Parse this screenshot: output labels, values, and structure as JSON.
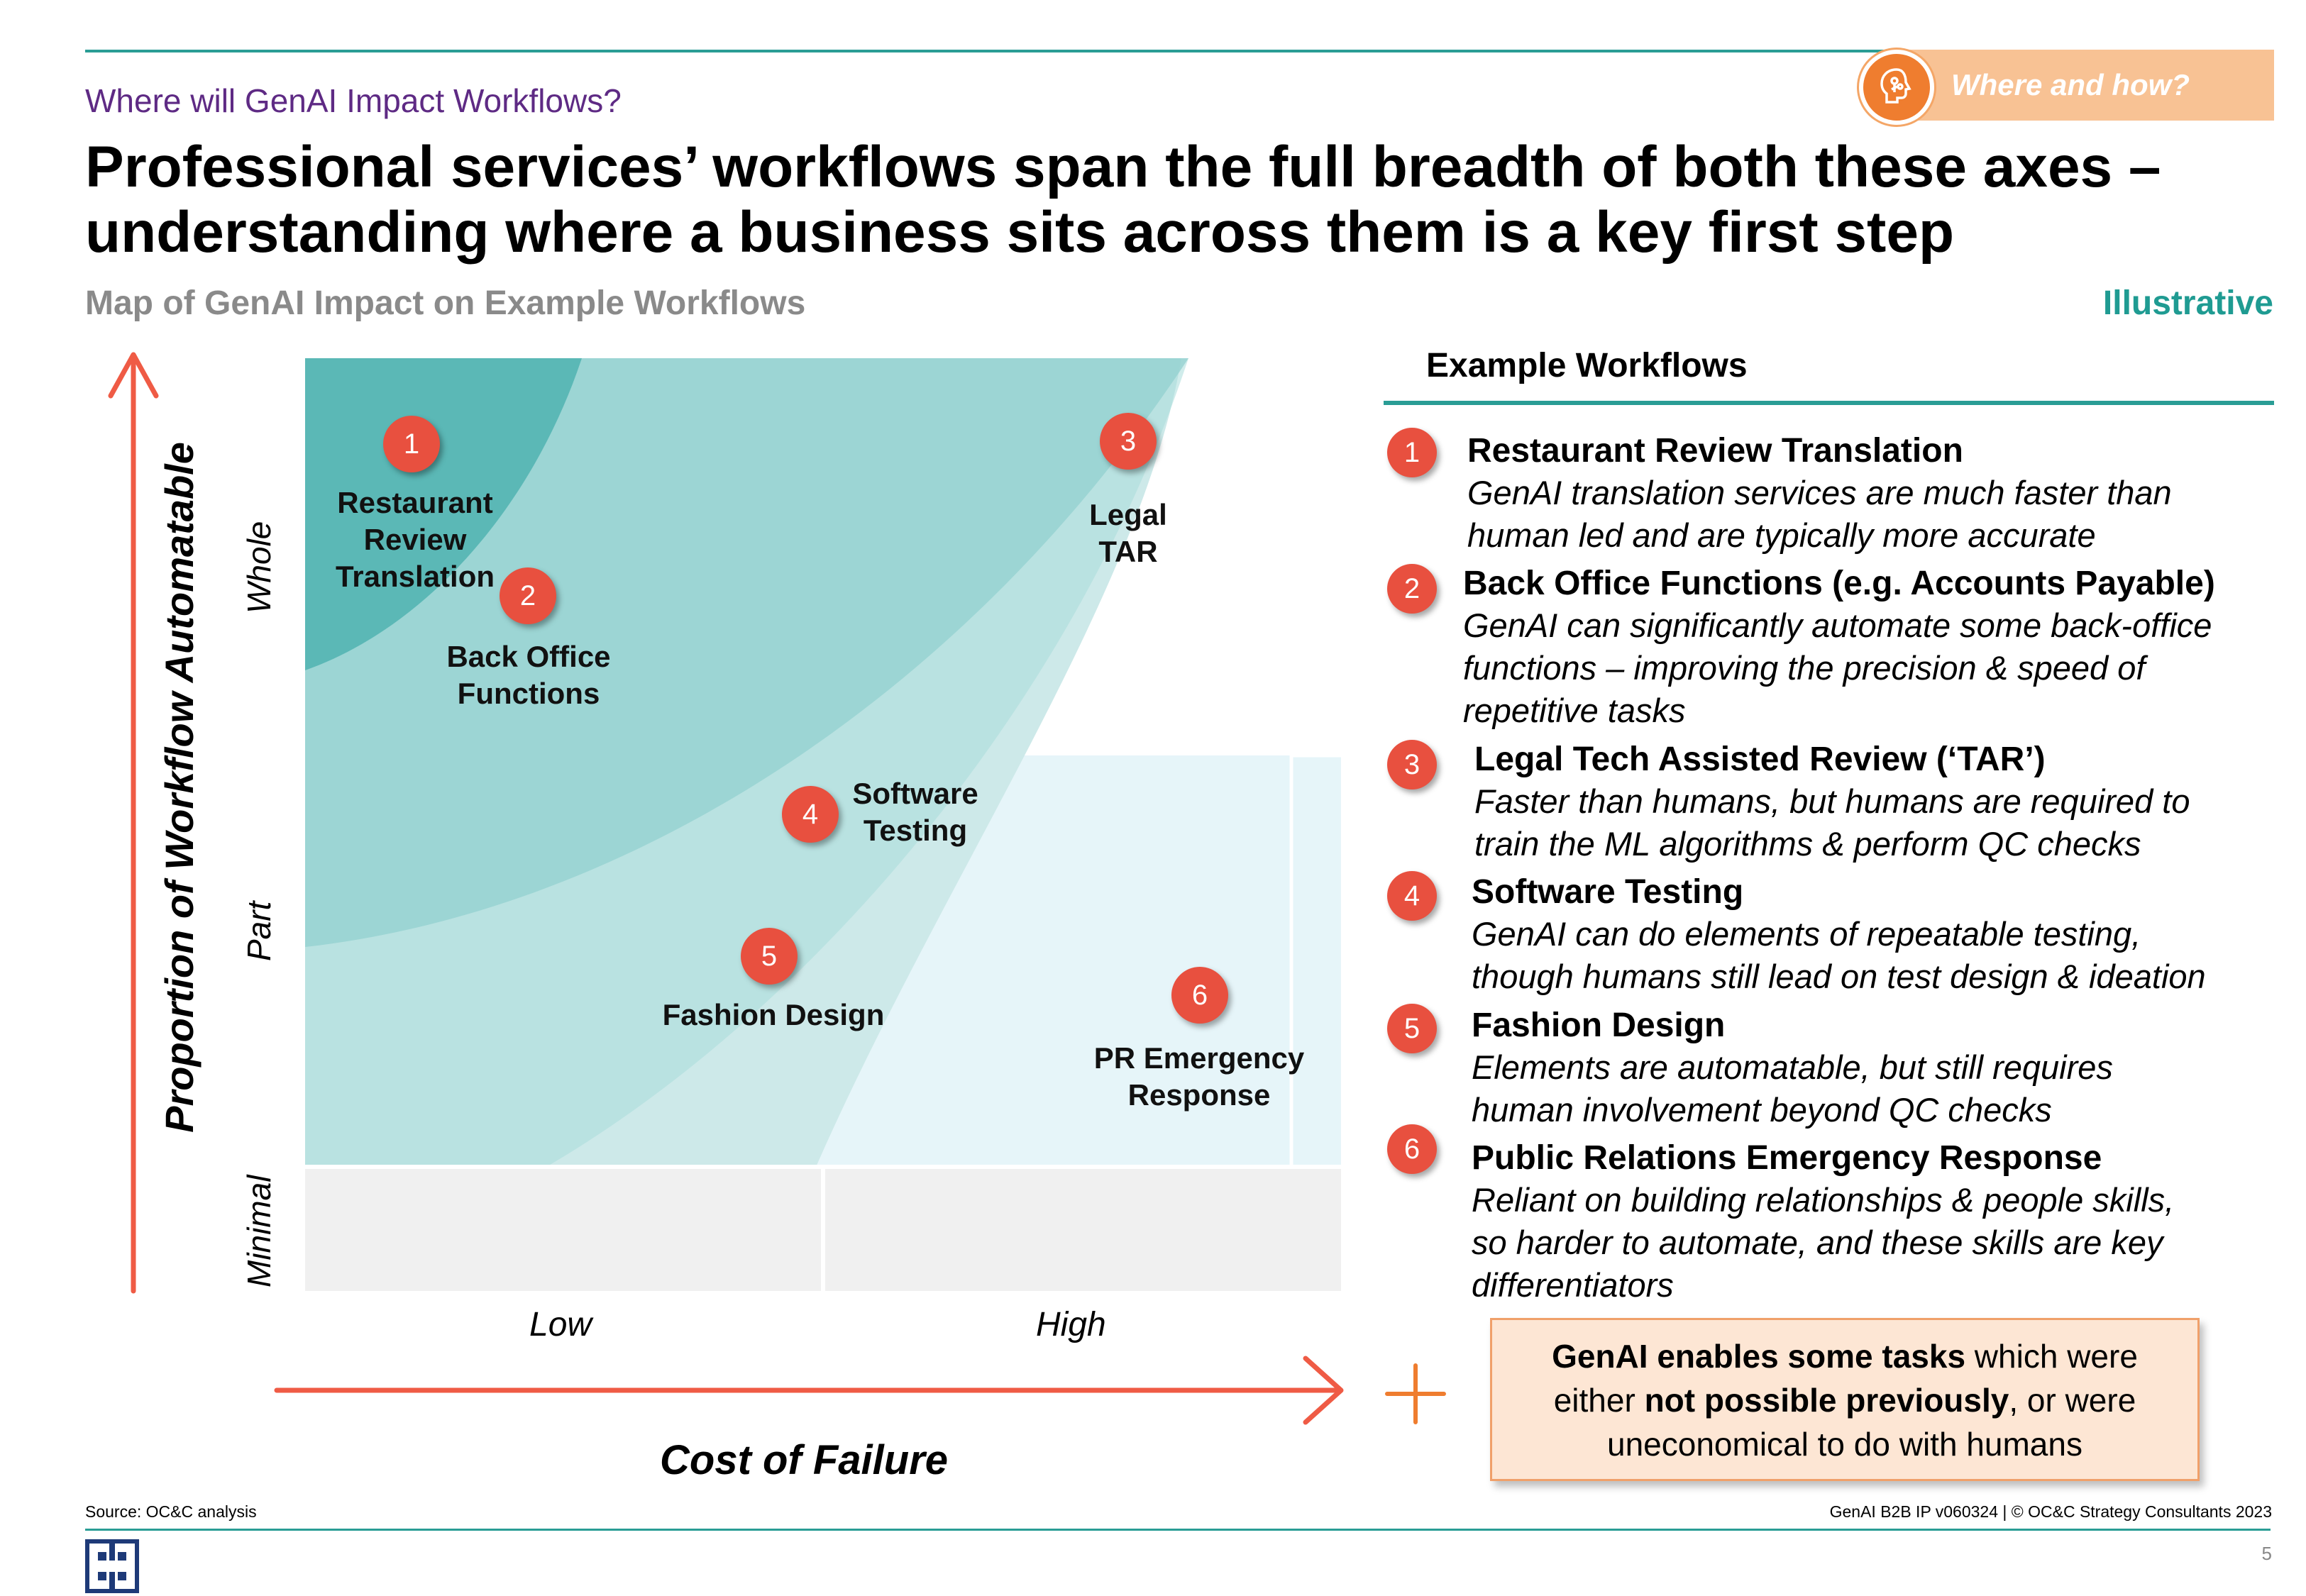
{
  "header": {
    "section_title": "Where will GenAI Impact Workflows?",
    "badge_label": "Where and how?",
    "headline": "Professional services’ workflows span the full breadth of both these axes – understanding where a business sits across them is a key first step",
    "subtitle": "Map of GenAI Impact on Example Workflows",
    "tag": "Illustrative"
  },
  "chart": {
    "y_axis_label": "Proportion of Workflow Automatable",
    "y_ticks": [
      "Minimal",
      "Part",
      "Whole"
    ],
    "x_axis_label": "Cost of Failure",
    "x_ticks": [
      "Low",
      "High"
    ],
    "points": [
      {
        "num": "1",
        "label_lines": [
          "Restaurant",
          "Review",
          "Translation"
        ]
      },
      {
        "num": "2",
        "label_lines": [
          "Back Office",
          "Functions"
        ]
      },
      {
        "num": "3",
        "label_lines": [
          "Legal",
          "TAR"
        ]
      },
      {
        "num": "4",
        "label_lines": [
          "Software",
          "Testing"
        ]
      },
      {
        "num": "5",
        "label_lines": [
          "Fashion Design"
        ]
      },
      {
        "num": "6",
        "label_lines": [
          "PR Emergency",
          "Response"
        ]
      }
    ],
    "colors": {
      "zone_dark": "#5bb8b6",
      "zone_mid": "#93d0cf",
      "zone_light": "#cde9e9",
      "zone_pale": "#e6f5f9",
      "zone_minimal": "#f0f0f0",
      "arrow": "#ef5b45",
      "marker": "#e8503f"
    }
  },
  "workflows": {
    "heading": "Example Workflows",
    "items": [
      {
        "num": "1",
        "title": "Restaurant Review Translation",
        "desc": [
          "GenAI translation services are much faster than",
          "human led and are typically more accurate"
        ]
      },
      {
        "num": "2",
        "title": "Back Office Functions (e.g. Accounts Payable)",
        "desc": [
          "GenAI can significantly automate some back-office",
          "functions – improving the precision & speed of",
          "repetitive tasks"
        ]
      },
      {
        "num": "3",
        "title": "Legal Tech Assisted Review (‘TAR’)",
        "desc": [
          "Faster than humans, but humans are required to",
          "train the ML algorithms & perform QC checks"
        ]
      },
      {
        "num": "4",
        "title": "Software Testing",
        "desc": [
          "GenAI can do elements of repeatable testing,",
          "though humans still lead on test design & ideation"
        ]
      },
      {
        "num": "5",
        "title": "Fashion Design",
        "desc": [
          "Elements are automatable, but still requires",
          "human involvement beyond QC checks"
        ]
      },
      {
        "num": "6",
        "title": "Public Relations Emergency Response",
        "desc": [
          "Reliant on building relationships & people skills,",
          "so harder to automate, and these skills are key",
          "differentiators"
        ]
      }
    ]
  },
  "callout": {
    "bold1": "GenAI enables some tasks",
    "text1": " which were",
    "text2": "either ",
    "bold2": "not possible previously",
    "text3": ", or were",
    "text4": "uneconomical to do with humans"
  },
  "footer": {
    "source": "Source: OC&C analysis",
    "copyright": "GenAI B2B IP v060324 | © OC&C Strategy Consultants 2023",
    "page_number": "5"
  }
}
